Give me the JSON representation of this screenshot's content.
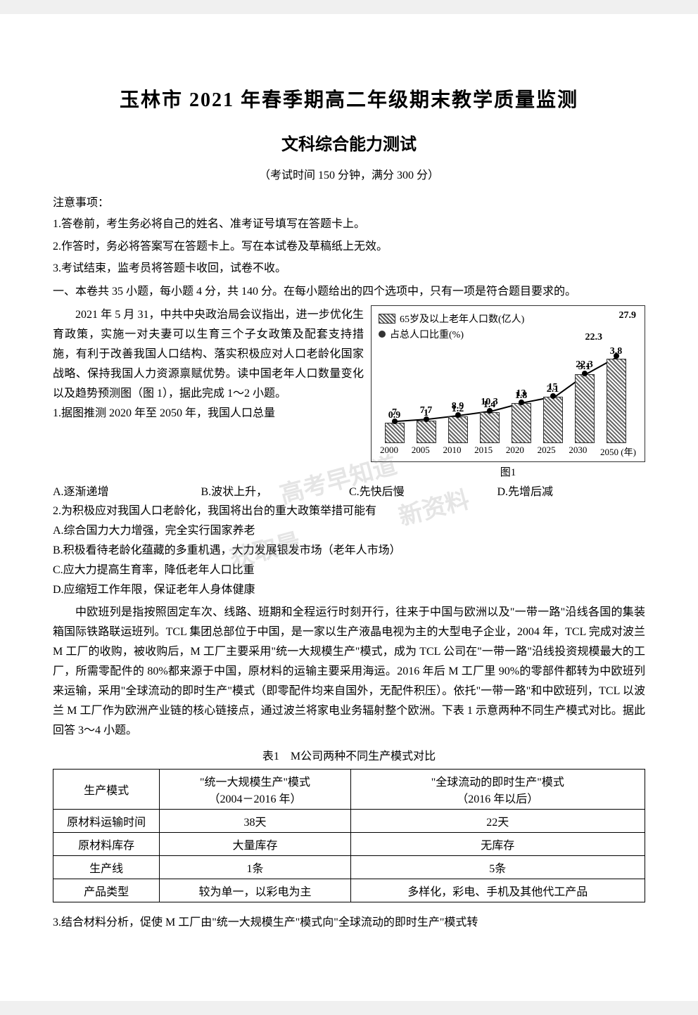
{
  "header": {
    "title_main": "玉林市 2021 年春季期高二年级期末教学质量监测",
    "title_sub": "文科综合能力测试",
    "exam_info": "（考试时间 150 分钟，满分 300 分）",
    "notice_label": "注意事项：",
    "instructions": [
      "1.答卷前，考生务必将自己的姓名、准考证号填写在答题卡上。",
      "2.作答时，务必将答案写在答题卡上。写在本试卷及草稿纸上无效。",
      "3.考试结束，监考员将答题卡收回，试卷不收。"
    ],
    "section1": "一、本卷共 35 小题，每小题 4 分，共 140 分。在每小题给出的四个选项中，只有一项是符合题目要求的。"
  },
  "passage1": {
    "intro": "2021 年 5 月 31，中共中央政治局会议指出，进一步优化生育政策，实施一对夫妻可以生育三个子女政策及配套支持措施，有利于改善我国人口结构、落实积极应对人口老龄化国家战略、保持我国人力资源禀赋优势。读中国老年人口数量变化以及趋势预测图（图 1），据此完成 1～2 小题。",
    "q1_stem": "1.据图推测 2020 年至 2050 年，我国人口总量",
    "q1_options": {
      "A": "A.逐渐递增",
      "B": "B.波状上升，",
      "C": "C.先快后慢",
      "D": "D.先增后减"
    },
    "q2_stem": "2.为积极应对我国人口老龄化，我国将出台的重大政策举措可能有",
    "q2_options": [
      "A.综合国力大力增强，完全实行国家养老",
      "B.积极看待老龄化蕴藏的多重机遇，大力发展银发市场（老年人市场）",
      "C.应大力提高生育率，降低老年人口比重",
      "D.应缩短工作年限，保证老年人身体健康"
    ]
  },
  "chart": {
    "type": "combo-bar-line",
    "legend_bar": "65岁及以上老年人口数(亿人)",
    "legend_line": "占总人口比重(%)",
    "caption": "图1",
    "x_axis_suffix": "(年)",
    "x_labels": [
      "2000",
      "2005",
      "2010",
      "2015",
      "2020",
      "2025",
      "2030",
      "2050"
    ],
    "bar_values": [
      0.9,
      1.0,
      1.2,
      1.4,
      1.8,
      2.1,
      3.1,
      3.8
    ],
    "line_values": [
      7,
      7.7,
      8.9,
      10.3,
      13,
      15,
      22.3,
      27.9
    ],
    "bar_max": 4.0,
    "line_max": 30,
    "bar_color": "#666",
    "line_color": "#000",
    "text_color": "#000",
    "font_size_label": 14,
    "background_color": "#ffffff"
  },
  "passage2": {
    "text": "中欧班列是指按照固定车次、线路、班期和全程运行时刻开行，往来于中国与欧洲以及\"一带一路\"沿线各国的集装箱国际铁路联运班列。TCL 集团总部位于中国，是一家以生产液晶电视为主的大型电子企业，2004 年，TCL 完成对波兰 M 工厂的收购，被收购后，M 工厂主要采用\"统一大规模生产\"模式，成为 TCL 公司在\"一带一路\"沿线投资规模最大的工厂，所需零配件的 80%都来源于中国，原材料的运输主要采用海运。2016 年后 M 工厂里 90%的零部件都转为中欧班列来运输，采用\"全球流动的即时生产\"模式（即零配件均来自国外，无配件积压）。依托\"一带一路\"和中欧班列，TCL 以波兰 M 工厂作为欧洲产业链的核心链接点，通过波兰将家电业务辐射整个欧洲。下表 1 示意两种不同生产模式对比。据此回答 3～4 小题。",
    "table_caption": "表1　M公司两种不同生产模式对比",
    "q3_stem": "3.结合材料分析，促使 M 工厂由\"统一大规模生产\"模式向\"全球流动的即时生产\"模式转"
  },
  "table": {
    "columns": [
      "生产模式",
      "\"统一大规模生产\"模式\n（2004－2016 年）",
      "\"全球流动的即时生产\"模式\n（2016 年以后）"
    ],
    "rows": [
      [
        "原材料运输时间",
        "38天",
        "22天"
      ],
      [
        "原材料库存",
        "大量库存",
        "无库存"
      ],
      [
        "生产线",
        "1条",
        "5条"
      ],
      [
        "产品类型",
        "较为单一，以彩电为主",
        "多样化，彩电、手机及其他代工产品"
      ]
    ]
  },
  "watermarks": {
    "w1": "高考早知道",
    "w2": "新资料",
    "w3": "获取最"
  }
}
